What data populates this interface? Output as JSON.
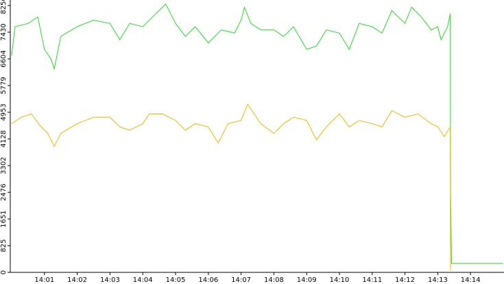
{
  "chart_data": {
    "type": "line",
    "xlim": [
      0,
      15
    ],
    "ylim": [
      0,
      8256
    ],
    "xticks": [
      {
        "value": 1,
        "label": "14:01"
      },
      {
        "value": 2,
        "label": "14:02"
      },
      {
        "value": 3,
        "label": "14:03"
      },
      {
        "value": 4,
        "label": "14:04"
      },
      {
        "value": 5,
        "label": "14:05"
      },
      {
        "value": 6,
        "label": "14:06"
      },
      {
        "value": 7,
        "label": "14:07"
      },
      {
        "value": 8,
        "label": "14:08"
      },
      {
        "value": 9,
        "label": "14:09"
      },
      {
        "value": 10,
        "label": "14:10"
      },
      {
        "value": 11,
        "label": "14:11"
      },
      {
        "value": 12,
        "label": "14:12"
      },
      {
        "value": 13,
        "label": "14:13"
      },
      {
        "value": 14,
        "label": "14:14"
      }
    ],
    "yticks": [
      0,
      825,
      1651,
      2476,
      3302,
      4128,
      4953,
      5779,
      6604,
      7430,
      8256
    ],
    "series": [
      {
        "color": "#22dd22",
        "x": [
          0,
          0.1,
          0.5,
          0.8,
          1.0,
          1.2,
          1.3,
          1.5,
          2,
          2.5,
          3,
          3.3,
          3.6,
          4,
          4.3,
          4.6,
          4.7,
          5,
          5.3,
          5.6,
          6,
          6.4,
          6.8,
          7,
          7.1,
          7.3,
          7.6,
          8,
          8.3,
          8.6,
          9,
          9.3,
          9.6,
          10,
          10.3,
          10.6,
          11,
          11.3,
          11.6,
          12,
          12.2,
          12.5,
          12.8,
          13,
          13.1,
          13.3,
          13.38,
          13.39,
          13.42,
          15
        ],
        "values": [
          6700,
          7600,
          7700,
          7900,
          6900,
          6600,
          6300,
          7300,
          7600,
          7800,
          7700,
          7200,
          7700,
          7600,
          7900,
          8200,
          8300,
          7700,
          7300,
          7600,
          7100,
          7500,
          7400,
          7800,
          8200,
          7700,
          7500,
          7500,
          7300,
          7600,
          6900,
          7000,
          7500,
          7400,
          6900,
          7700,
          7600,
          7400,
          8100,
          7700,
          8200,
          7900,
          7500,
          7600,
          7200,
          7600,
          8000,
          2600,
          275,
          275
        ]
      },
      {
        "color": "#f0b400",
        "x": [
          0,
          0.3,
          0.6,
          0.9,
          1.1,
          1.3,
          1.5,
          2,
          2.5,
          3,
          3.3,
          3.6,
          4,
          4.2,
          4.6,
          5,
          5.3,
          5.6,
          6,
          6.3,
          6.6,
          7,
          7.2,
          7.4,
          7.6,
          8,
          8.3,
          8.6,
          9,
          9.3,
          9.6,
          10,
          10.3,
          10.6,
          11,
          11.3,
          11.6,
          12,
          12.4,
          12.8,
          13,
          13.2,
          13.38,
          13.39
        ],
        "values": [
          4600,
          4800,
          4900,
          4500,
          4300,
          3900,
          4300,
          4600,
          4800,
          4800,
          4500,
          4400,
          4600,
          4900,
          4900,
          4700,
          4400,
          4600,
          4500,
          4000,
          4600,
          4700,
          5200,
          4900,
          4600,
          4300,
          4600,
          4800,
          4700,
          4100,
          4500,
          4900,
          4500,
          4700,
          4600,
          4500,
          5000,
          4800,
          4900,
          4600,
          4500,
          4200,
          4500,
          60
        ]
      }
    ]
  }
}
